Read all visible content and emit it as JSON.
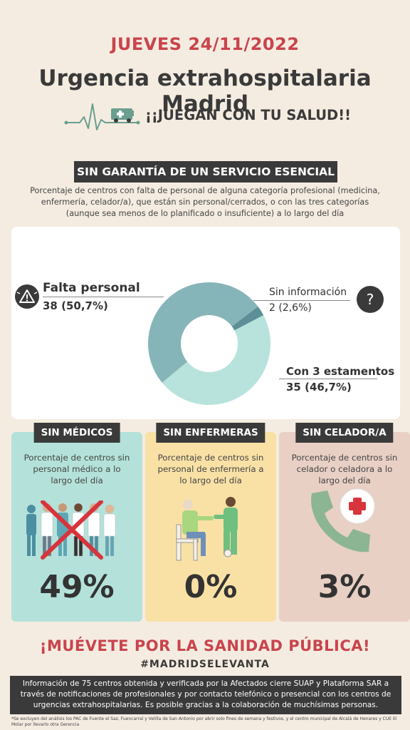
{
  "header": {
    "date": "JUEVES 24/11/2022",
    "title": "Urgencia extrahospitalaria Madrid",
    "slogan": "¡¡JUEGAN CON TU SALUD!!"
  },
  "section": {
    "tag": "SIN GARANTÍA DE UN SERVICIO  ESENCIAL",
    "intro": "Porcentaje de centros con falta de personal de alguna categoría profesional (medicina, enfermería, celador/a), que están sin personal/cerrados, o con las tres categorías (aunque sea menos de lo planificado o insuficiente) a lo largo del día"
  },
  "chart_data": {
    "type": "pie",
    "donut": true,
    "slices": [
      {
        "label": "Falta personal",
        "value_text": "38 (50,7%)",
        "count": 38,
        "percent": 50.7,
        "color": "#86b5b9"
      },
      {
        "label": "Sin información",
        "value_text": "2 (2,6%)",
        "count": 2,
        "percent": 2.6,
        "color": "#5c8f97"
      },
      {
        "label": "Con 3 estamentos",
        "value_text": "35 (46,7%)",
        "count": 35,
        "percent": 46.7,
        "color": "#b8e3dc"
      }
    ]
  },
  "cards": [
    {
      "tag": "SIN MÉDICOS",
      "desc": "Porcentaje de centros sin personal médico a lo largo del día",
      "pct": "49%",
      "bg": "#b4e2da"
    },
    {
      "tag": "SIN ENFERMERAS",
      "desc": "Porcentaje de centros sin personal de enfermería a lo largo del día",
      "pct": "0%",
      "bg": "#f9e1a6"
    },
    {
      "tag": "SIN CELADOR/A",
      "desc": "Porcentaje de centros sin celador o celadora a lo largo del día",
      "pct": "3%",
      "bg": "#e8d0c5"
    }
  ],
  "cta": "¡MUÉVETE POR LA SANIDAD PÚBLICA!",
  "hashtag": "#MADRIDSELEVANTA",
  "footer": "Información de 75 centros obtenida y verificada por la Afectados cierre SUAP y Plataforma SAR a través de notificaciones de profesionales y por contacto telefónico o presencial con los centros de urgencias extrahospitalarias. Es posible gracias a la colaboración de muchísimas personas.",
  "note": "*Se excluyen del análisis los PAC de Fuente el Saz, Fuencarral y Velilla de San Antonio por abrir solo fines de semana y festivos, y el centro municipal de Alcalá de Henares y CUE El Molar por llevarlo otra Gerencia",
  "colors": {
    "accent": "#c9444c",
    "dark": "#3a3a3a",
    "background": "#f5ece1"
  }
}
